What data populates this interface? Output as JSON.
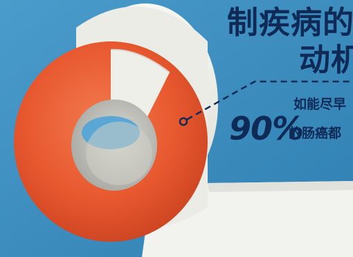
{
  "headline": {
    "line1": "制疾病的",
    "line2": "动机"
  },
  "callout": {
    "line1": "如能尽早",
    "percent": "90%",
    "line2": "的肠癌都"
  },
  "colors": {
    "background": "#3f8fc0",
    "text": "#0f2a57",
    "roll_orange": "#e8582f",
    "paper": "#eeeeea"
  }
}
